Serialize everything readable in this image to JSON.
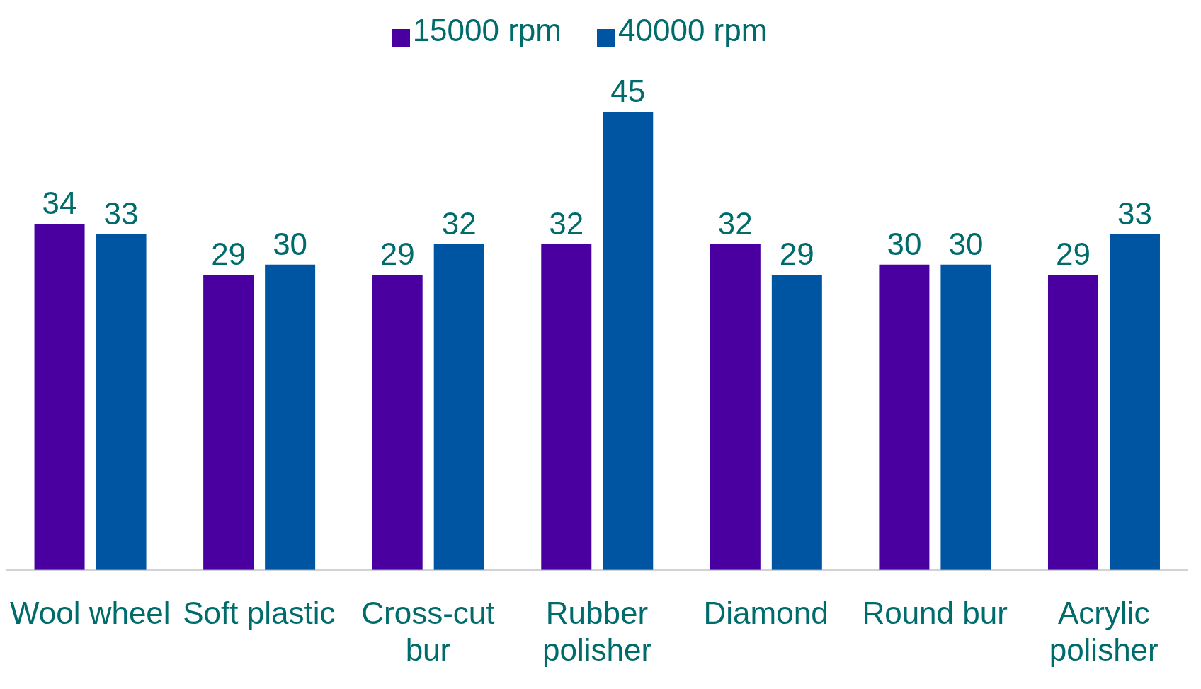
{
  "chart_data": {
    "type": "bar",
    "categories": [
      "Wool wheel",
      "Soft plastic",
      "Cross-cut bur",
      "Rubber polisher",
      "Diamond",
      "Round bur",
      "Acrylic polisher"
    ],
    "series": [
      {
        "name": "15000 rpm",
        "color": "#4a00a0",
        "values": [
          34,
          29,
          29,
          32,
          32,
          30,
          29
        ]
      },
      {
        "name": "40000 rpm",
        "color": "#0055a2",
        "values": [
          33,
          30,
          32,
          45,
          29,
          30,
          33
        ]
      }
    ],
    "data_labels": true,
    "legend": "top",
    "grid": false
  }
}
